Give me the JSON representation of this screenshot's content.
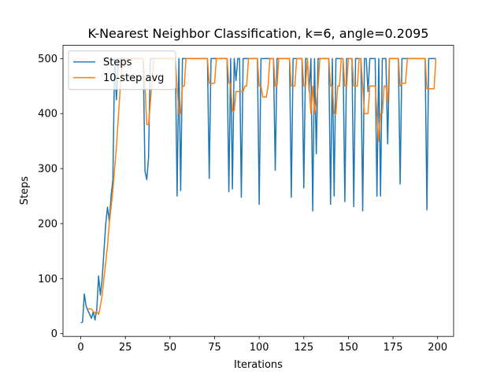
{
  "chart_data": {
    "type": "line",
    "title": "K-Nearest Neighbor Classification, k=6, angle=0.2095",
    "x_label": "Iterations",
    "y_label": "Steps",
    "x": [
      0,
      1,
      2,
      3,
      4,
      5,
      6,
      7,
      8,
      9,
      10,
      11,
      12,
      13,
      14,
      15,
      16,
      17,
      18,
      19,
      20,
      21,
      22,
      23,
      24,
      25,
      26,
      27,
      28,
      29,
      30,
      31,
      32,
      33,
      34,
      35,
      36,
      37,
      38,
      39,
      40,
      41,
      42,
      43,
      44,
      45,
      46,
      47,
      48,
      49,
      50,
      51,
      52,
      53,
      54,
      55,
      56,
      57,
      58,
      59,
      60,
      61,
      62,
      63,
      64,
      65,
      66,
      67,
      68,
      69,
      70,
      71,
      72,
      73,
      74,
      75,
      76,
      77,
      78,
      79,
      80,
      81,
      82,
      83,
      84,
      85,
      86,
      87,
      88,
      89,
      90,
      91,
      92,
      93,
      94,
      95,
      96,
      97,
      98,
      99,
      100,
      101,
      102,
      103,
      104,
      105,
      106,
      107,
      108,
      109,
      110,
      111,
      112,
      113,
      114,
      115,
      116,
      117,
      118,
      119,
      120,
      121,
      122,
      123,
      124,
      125,
      126,
      127,
      128,
      129,
      130,
      131,
      132,
      133,
      134,
      135,
      136,
      137,
      138,
      139,
      140,
      141,
      142,
      143,
      144,
      145,
      146,
      147,
      148,
      149,
      150,
      151,
      152,
      153,
      154,
      155,
      156,
      157,
      158,
      159,
      160,
      161,
      162,
      163,
      164,
      165,
      166,
      167,
      168,
      169,
      170,
      171,
      172,
      173,
      174,
      175,
      176,
      177,
      178,
      179,
      180,
      181,
      182,
      183,
      184,
      185,
      186,
      187,
      188,
      189,
      190,
      191,
      192,
      193,
      194,
      195,
      196,
      197,
      198,
      199
    ],
    "series": [
      {
        "name": "Steps",
        "color": "#1f77b4",
        "values": [
          20,
          21,
          72,
          50,
          42,
          35,
          28,
          40,
          25,
          45,
          105,
          70,
          100,
          150,
          200,
          230,
          205,
          250,
          280,
          500,
          425,
          500,
          500,
          500,
          500,
          500,
          500,
          500,
          500,
          500,
          500,
          500,
          500,
          500,
          500,
          500,
          295,
          280,
          320,
          500,
          500,
          500,
          500,
          500,
          500,
          500,
          500,
          500,
          500,
          500,
          500,
          500,
          500,
          500,
          250,
          500,
          260,
          500,
          500,
          500,
          500,
          500,
          500,
          500,
          500,
          500,
          500,
          500,
          500,
          500,
          500,
          500,
          282,
          500,
          500,
          500,
          500,
          500,
          500,
          500,
          500,
          500,
          500,
          258,
          500,
          263,
          500,
          460,
          500,
          500,
          248,
          500,
          500,
          500,
          500,
          500,
          500,
          500,
          500,
          500,
          235,
          500,
          500,
          500,
          500,
          500,
          500,
          500,
          500,
          297,
          500,
          500,
          500,
          500,
          500,
          500,
          500,
          500,
          248,
          500,
          500,
          500,
          500,
          500,
          500,
          265,
          500,
          500,
          440,
          500,
          223,
          500,
          327,
          500,
          500,
          500,
          500,
          500,
          500,
          500,
          235,
          500,
          250,
          500,
          500,
          500,
          500,
          500,
          240,
          500,
          500,
          500,
          500,
          231,
          500,
          500,
          500,
          500,
          223,
          500,
          500,
          440,
          500,
          500,
          500,
          500,
          250,
          500,
          250,
          500,
          500,
          500,
          345,
          500,
          500,
          500,
          500,
          500,
          500,
          272,
          500,
          500,
          500,
          500,
          500,
          500,
          500,
          500,
          500,
          500,
          500,
          500,
          500,
          500,
          225,
          500,
          500,
          500,
          500,
          500
        ]
      },
      {
        "name": "10-step avg",
        "color": "#ff7f0e",
        "values": [
          null,
          null,
          null,
          null,
          45,
          45,
          45,
          40,
          38,
          40,
          35,
          50,
          70,
          100,
          130,
          160,
          200,
          230,
          260,
          300,
          340,
          390,
          440,
          480,
          500,
          500,
          500,
          500,
          500,
          500,
          500,
          500,
          500,
          500,
          500,
          500,
          450,
          380,
          380,
          420,
          460,
          500,
          500,
          500,
          500,
          500,
          500,
          500,
          500,
          500,
          500,
          500,
          500,
          500,
          450,
          400,
          400,
          450,
          450,
          500,
          500,
          500,
          500,
          500,
          500,
          500,
          500,
          500,
          500,
          500,
          500,
          500,
          455,
          455,
          455,
          455,
          500,
          500,
          500,
          500,
          500,
          500,
          500,
          455,
          455,
          405,
          405,
          440,
          440,
          440,
          440,
          440,
          450,
          450,
          500,
          500,
          500,
          500,
          500,
          500,
          450,
          450,
          430,
          430,
          430,
          450,
          500,
          500,
          500,
          450,
          450,
          500,
          500,
          500,
          500,
          500,
          500,
          500,
          450,
          450,
          450,
          500,
          500,
          500,
          500,
          450,
          450,
          500,
          450,
          400,
          450,
          400,
          420,
          450,
          500,
          500,
          500,
          500,
          500,
          500,
          450,
          450,
          400,
          400,
          450,
          450,
          500,
          500,
          450,
          450,
          500,
          500,
          500,
          450,
          450,
          450,
          500,
          500,
          450,
          400,
          400,
          400,
          450,
          450,
          450,
          450,
          400,
          350,
          400,
          400,
          450,
          450,
          420,
          500,
          500,
          500,
          500,
          500,
          500,
          450,
          455,
          455,
          455,
          500,
          500,
          500,
          500,
          500,
          500,
          500,
          500,
          500,
          500,
          500,
          445,
          445,
          445,
          445,
          445,
          500
        ]
      }
    ],
    "xlim": [
      -9.95,
      208.95
    ],
    "xticks": [
      0,
      25,
      50,
      75,
      100,
      125,
      150,
      175,
      200
    ],
    "ylim": [
      -5,
      524
    ],
    "yticks": [
      0,
      100,
      200,
      300,
      400,
      500
    ],
    "grid": false,
    "legend": "upper-left"
  }
}
